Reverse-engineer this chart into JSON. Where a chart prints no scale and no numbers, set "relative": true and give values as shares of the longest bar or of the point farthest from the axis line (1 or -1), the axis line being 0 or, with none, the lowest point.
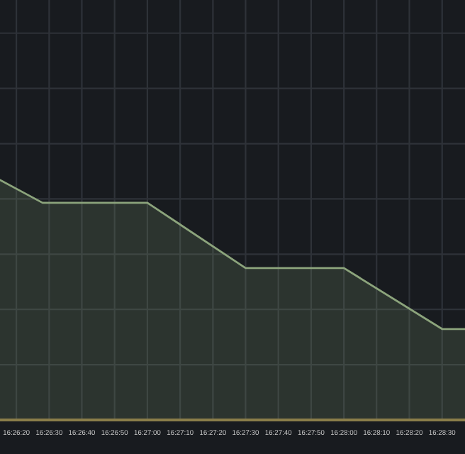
{
  "chart_data": {
    "type": "area",
    "relative": true,
    "x": [
      16.4375,
      16.44111,
      16.45,
      16.45833,
      16.46667,
      16.475,
      16.47694
    ],
    "series": [
      {
        "color": "#8ca47c",
        "values": [
          1.0,
          0.905,
          0.905,
          0.633,
          0.633,
          0.379,
          0.379
        ]
      }
    ],
    "xlim": [
      16.4375,
      16.47694
    ],
    "xticks": [
      {
        "value": 16.43889,
        "label": "16:26:20"
      },
      {
        "value": 16.44167,
        "label": "16:26:30"
      },
      {
        "value": 16.44444,
        "label": "16:26:40"
      },
      {
        "value": 16.44722,
        "label": "16:26:50"
      },
      {
        "value": 16.45,
        "label": "16:27:00"
      },
      {
        "value": 16.45278,
        "label": "16:27:10"
      },
      {
        "value": 16.45556,
        "label": "16:27:20"
      },
      {
        "value": 16.45833,
        "label": "16:27:30"
      },
      {
        "value": 16.46111,
        "label": "16:27:40"
      },
      {
        "value": 16.46389,
        "label": "16:27:50"
      },
      {
        "value": 16.46667,
        "label": "16:28:00"
      },
      {
        "value": 16.46944,
        "label": "16:28:10"
      },
      {
        "value": 16.47222,
        "label": "16:28:20"
      },
      {
        "value": 16.475,
        "label": "16:28:30"
      }
    ],
    "grid": true,
    "tick_labels": "x",
    "legend": false
  }
}
